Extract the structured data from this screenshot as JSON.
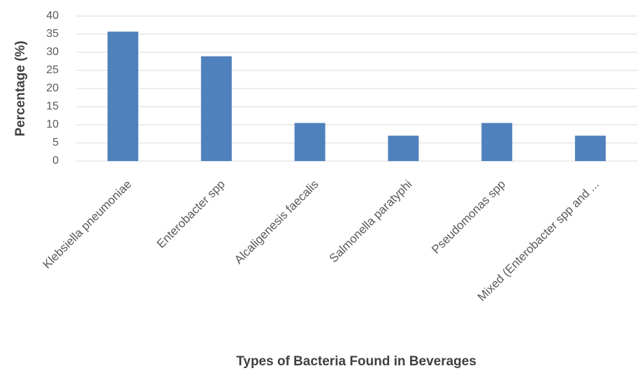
{
  "chart_data": {
    "type": "bar",
    "categories": [
      "Klebsiella pneumoniae",
      "Enterobacter spp",
      "Alcaligenesis faecalis",
      "Salmonella paratyphi",
      "Pseudomonas spp",
      "Mixed (Enterobacter spp and ..."
    ],
    "values": [
      35.7,
      28.9,
      10.5,
      7,
      10.5,
      7
    ],
    "title": "",
    "xlabel": "Types of Bacteria Found in Beverages",
    "ylabel": "Percentage (%)",
    "ylim": [
      0,
      40
    ],
    "yticks": [
      0,
      5,
      10,
      15,
      20,
      25,
      30,
      35,
      40
    ],
    "grid": true,
    "legend": "none",
    "bar_color": "#4f81bd"
  }
}
